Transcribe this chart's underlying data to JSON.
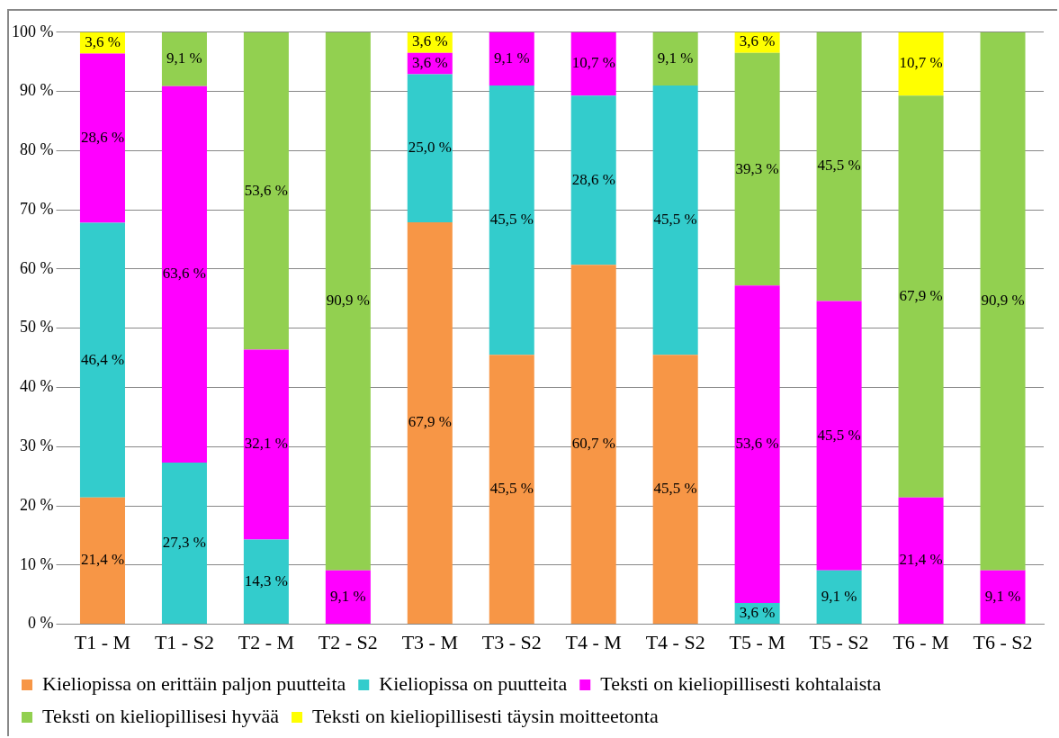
{
  "chart_data": {
    "type": "bar",
    "stacked": true,
    "categories": [
      "T1 - M",
      "T1 - S2",
      "T2 - M",
      "T2 - S2",
      "T3 - M",
      "T3 - S2",
      "T4 - M",
      "T4 - S2",
      "T5 - M",
      "T5 - S2",
      "T6 - M",
      "T6 - S2"
    ],
    "series": [
      {
        "name": "Kieliopissa on erittäin paljon puutteita",
        "color": "#f79646",
        "values": [
          21.4,
          0,
          0,
          0,
          67.9,
          45.5,
          60.7,
          45.5,
          0,
          0,
          0,
          0
        ],
        "value_labels": [
          "21,4 %",
          null,
          null,
          null,
          "67,9 %",
          "45,5 %",
          "60,7 %",
          "45,5 %",
          null,
          null,
          null,
          null
        ]
      },
      {
        "name": "Kieliopissa on puutteita",
        "color": "#33cccc",
        "values": [
          46.4,
          27.3,
          14.3,
          0,
          25.0,
          45.5,
          28.6,
          45.5,
          3.6,
          9.1,
          0,
          0
        ],
        "value_labels": [
          "46,4 %",
          "27,3 %",
          "14,3 %",
          null,
          "25,0 %",
          "45,5 %",
          "28,6 %",
          "45,5 %",
          "3,6 %",
          "9,1 %",
          null,
          null
        ]
      },
      {
        "name": "Teksti on kieliopillisesti kohtalaista",
        "color": "#ff00ff",
        "values": [
          28.6,
          63.6,
          32.1,
          9.1,
          3.6,
          9.1,
          10.7,
          0,
          53.6,
          45.5,
          21.4,
          9.1
        ],
        "value_labels": [
          "28,6 %",
          "63,6 %",
          "32,1 %",
          "9,1 %",
          "3,6 %",
          "9,1 %",
          "10,7 %",
          null,
          "53,6 %",
          "45,5 %",
          "21,4 %",
          "9,1 %"
        ]
      },
      {
        "name": "Teksti on kieliopillisesi hyvää",
        "color": "#92d050",
        "values": [
          0,
          9.1,
          53.6,
          90.9,
          0,
          0,
          0,
          9.1,
          39.3,
          45.5,
          67.9,
          90.9
        ],
        "value_labels": [
          null,
          "9,1 %",
          "53,6 %",
          "90,9 %",
          null,
          null,
          null,
          "9,1 %",
          "39,3 %",
          "45,5 %",
          "67,9 %",
          "90,9 %"
        ]
      },
      {
        "name": "Teksti on kieliopillisesti täysin moitteetonta",
        "color": "#ffff00",
        "values": [
          3.6,
          0,
          0,
          0,
          3.6,
          0,
          0,
          0,
          3.6,
          0,
          10.7,
          0
        ],
        "value_labels": [
          "3,6 %",
          null,
          null,
          null,
          "3,6 %",
          null,
          null,
          null,
          "3,6 %",
          null,
          "10,7 %",
          null
        ]
      }
    ],
    "ylim": [
      0,
      100
    ],
    "yticks": [
      {
        "value": 0,
        "label": "0 %"
      },
      {
        "value": 10,
        "label": "10 %"
      },
      {
        "value": 20,
        "label": "20 %"
      },
      {
        "value": 30,
        "label": "30 %"
      },
      {
        "value": 40,
        "label": "40 %"
      },
      {
        "value": 50,
        "label": "50 %"
      },
      {
        "value": 60,
        "label": "60 %"
      },
      {
        "value": 70,
        "label": "70 %"
      },
      {
        "value": 80,
        "label": "80 %"
      },
      {
        "value": 90,
        "label": "90 %"
      },
      {
        "value": 100,
        "label": "100 %"
      }
    ],
    "grid": "y",
    "legend": "bottom"
  }
}
